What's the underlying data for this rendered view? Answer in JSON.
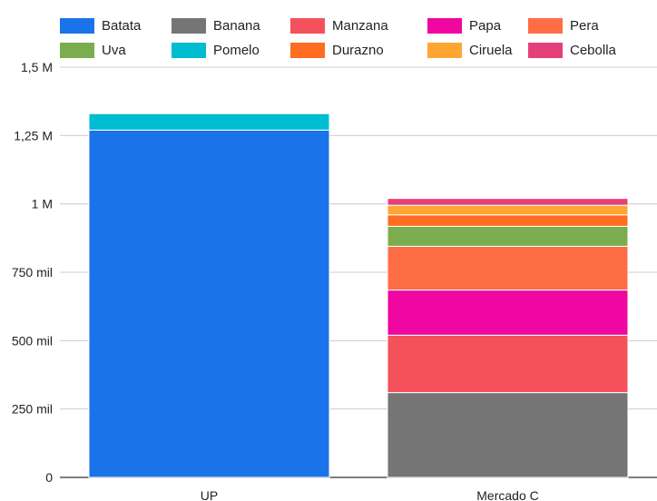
{
  "chart_data": {
    "type": "bar",
    "stacked": true,
    "categories": [
      "UP",
      "Mercado C"
    ],
    "series": [
      {
        "name": "Batata",
        "color": "#1a73e8",
        "values": [
          1270000,
          0
        ]
      },
      {
        "name": "Banana",
        "color": "#757575",
        "values": [
          0,
          310000
        ]
      },
      {
        "name": "Manzana",
        "color": "#f4515c",
        "values": [
          0,
          210000
        ]
      },
      {
        "name": "Papa",
        "color": "#f006a0",
        "values": [
          0,
          165000
        ]
      },
      {
        "name": "Pera",
        "color": "#ff6d45",
        "values": [
          0,
          160000
        ]
      },
      {
        "name": "Uva",
        "color": "#7bad4e",
        "values": [
          0,
          73000
        ]
      },
      {
        "name": "Pomelo",
        "color": "#00bcd1",
        "values": [
          60000,
          0
        ]
      },
      {
        "name": "Durazno",
        "color": "#ff6d21",
        "values": [
          0,
          42000
        ]
      },
      {
        "name": "Ciruela",
        "color": "#ffa632",
        "values": [
          0,
          35000
        ]
      },
      {
        "name": "Cebolla",
        "color": "#e6407a",
        "values": [
          0,
          25000
        ]
      }
    ],
    "yticks": [
      {
        "value": 0,
        "label": "0"
      },
      {
        "value": 250000,
        "label": "250 mil"
      },
      {
        "value": 500000,
        "label": "500 mil"
      },
      {
        "value": 750000,
        "label": "750 mil"
      },
      {
        "value": 1000000,
        "label": "1 M"
      },
      {
        "value": 1250000,
        "label": "1,25 M"
      },
      {
        "value": 1500000,
        "label": "1,5 M"
      }
    ],
    "ylim": [
      0,
      1500000
    ],
    "grid": true,
    "legend_position": "top"
  }
}
